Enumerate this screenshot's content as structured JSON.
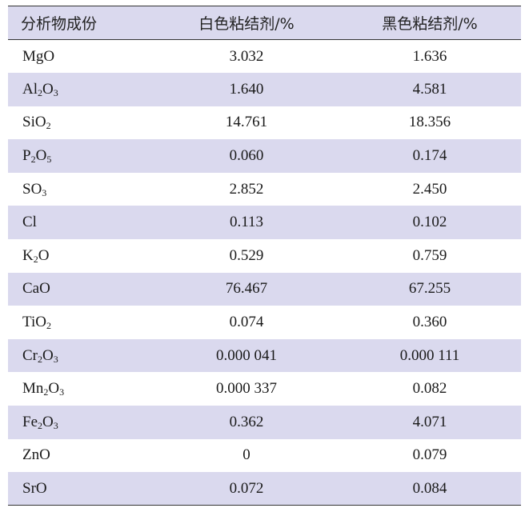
{
  "header": {
    "col1": "分析物成份",
    "col2": "白色粘结剂/%",
    "col3": "黑色粘结剂/%"
  },
  "rows": [
    {
      "component": {
        "parts": [
          {
            "t": "MgO"
          }
        ]
      },
      "white": "3.032",
      "black": "1.636"
    },
    {
      "component": {
        "parts": [
          {
            "t": "Al"
          },
          {
            "t": "2",
            "sub": true
          },
          {
            "t": "O"
          },
          {
            "t": "3",
            "sub": true
          }
        ]
      },
      "white": "1.640",
      "black": "4.581"
    },
    {
      "component": {
        "parts": [
          {
            "t": "SiO"
          },
          {
            "t": "2",
            "sub": true
          }
        ]
      },
      "white": "14.761",
      "black": "18.356"
    },
    {
      "component": {
        "parts": [
          {
            "t": "P"
          },
          {
            "t": "2",
            "sub": true
          },
          {
            "t": "O"
          },
          {
            "t": "5",
            "sub": true
          }
        ]
      },
      "white": "0.060",
      "black": "0.174"
    },
    {
      "component": {
        "parts": [
          {
            "t": "SO"
          },
          {
            "t": "3",
            "sub": true
          }
        ]
      },
      "white": "2.852",
      "black": "2.450"
    },
    {
      "component": {
        "parts": [
          {
            "t": "Cl"
          }
        ]
      },
      "white": "0.113",
      "black": "0.102"
    },
    {
      "component": {
        "parts": [
          {
            "t": "K"
          },
          {
            "t": "2",
            "sub": true
          },
          {
            "t": "O"
          }
        ]
      },
      "white": "0.529",
      "black": "0.759"
    },
    {
      "component": {
        "parts": [
          {
            "t": "CaO"
          }
        ]
      },
      "white": "76.467",
      "black": "67.255"
    },
    {
      "component": {
        "parts": [
          {
            "t": "TiO"
          },
          {
            "t": "2",
            "sub": true
          }
        ]
      },
      "white": "0.074",
      "black": "0.360"
    },
    {
      "component": {
        "parts": [
          {
            "t": "Cr"
          },
          {
            "t": "2",
            "sub": true
          },
          {
            "t": "O"
          },
          {
            "t": "3",
            "sub": true
          }
        ]
      },
      "white": "0.000 041",
      "black": "0.000 111"
    },
    {
      "component": {
        "parts": [
          {
            "t": "Mn"
          },
          {
            "t": "2",
            "sub": true
          },
          {
            "t": "O"
          },
          {
            "t": "3",
            "sub": true
          }
        ]
      },
      "white": "0.000 337",
      "black": "0.082"
    },
    {
      "component": {
        "parts": [
          {
            "t": "Fe"
          },
          {
            "t": "2",
            "sub": true
          },
          {
            "t": "O"
          },
          {
            "t": "3",
            "sub": true
          }
        ]
      },
      "white": "0.362",
      "black": "4.071"
    },
    {
      "component": {
        "parts": [
          {
            "t": "ZnO"
          }
        ]
      },
      "white": "0",
      "black": "0.079"
    },
    {
      "component": {
        "parts": [
          {
            "t": "SrO"
          }
        ]
      },
      "white": "0.072",
      "black": "0.084"
    }
  ]
}
